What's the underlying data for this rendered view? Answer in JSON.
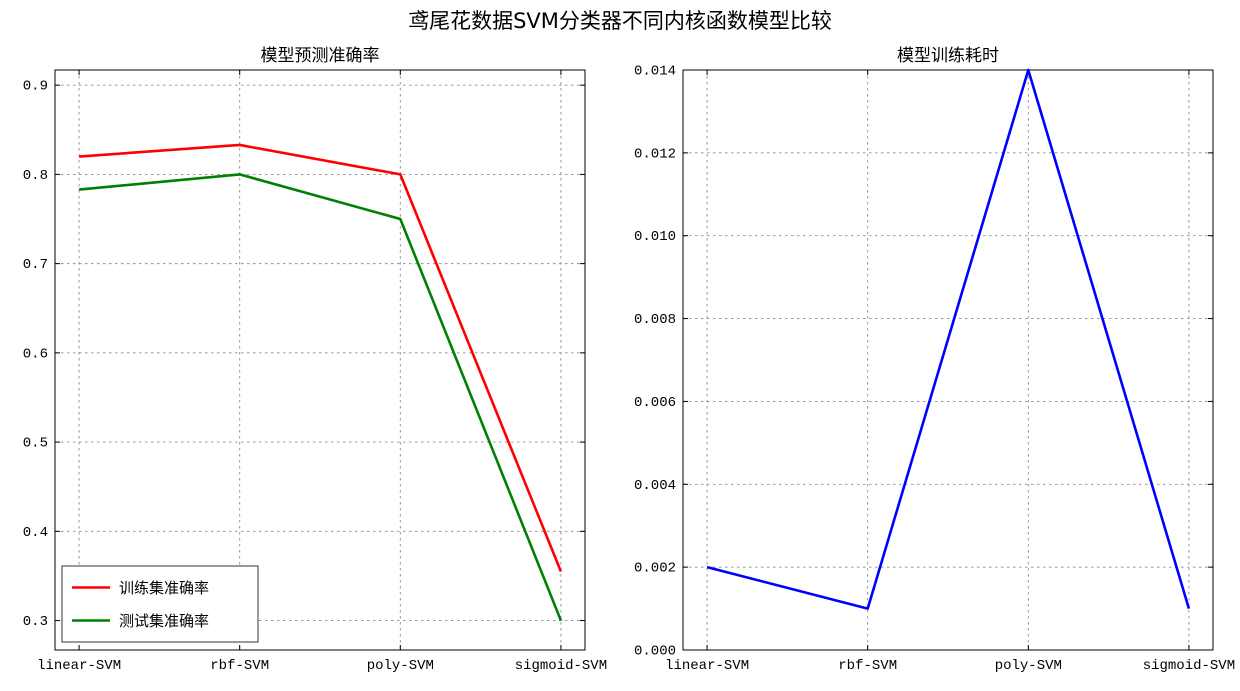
{
  "figure": {
    "title": "鸢尾花数据SVM分类器不同内核函数模型比较",
    "background": "#ffffff"
  },
  "chart_data": [
    {
      "type": "line",
      "title": "模型预测准确率",
      "categories": [
        "linear-SVM",
        "rbf-SVM",
        "poly-SVM",
        "sigmoid-SVM"
      ],
      "series": [
        {
          "name": "训练集准确率",
          "color": "#ff0000",
          "values": [
            0.82,
            0.833,
            0.8,
            0.355
          ]
        },
        {
          "name": "测试集准确率",
          "color": "#008000",
          "values": [
            0.783,
            0.8,
            0.75,
            0.3
          ]
        }
      ],
      "ylim": [
        0.267,
        0.917
      ],
      "yticks": [
        0.3,
        0.4,
        0.5,
        0.6,
        0.7,
        0.8,
        0.9
      ],
      "ytick_labels": [
        "0.3",
        "0.4",
        "0.5",
        "0.6",
        "0.7",
        "0.8",
        "0.9"
      ],
      "grid": true,
      "legend": {
        "position": "lower-left",
        "entries": [
          "训练集准确率",
          "测试集准确率"
        ]
      }
    },
    {
      "type": "line",
      "title": "模型训练耗时",
      "categories": [
        "linear-SVM",
        "rbf-SVM",
        "poly-SVM",
        "sigmoid-SVM"
      ],
      "series": [
        {
          "name": "",
          "color": "#0000ff",
          "values": [
            0.002,
            0.001,
            0.014,
            0.001
          ]
        }
      ],
      "ylim": [
        0,
        0.014
      ],
      "yticks": [
        0,
        0.002,
        0.004,
        0.006,
        0.008,
        0.01,
        0.012,
        0.014
      ],
      "ytick_labels": [
        "0.000",
        "0.002",
        "0.004",
        "0.006",
        "0.008",
        "0.010",
        "0.012",
        "0.014"
      ],
      "grid": true,
      "legend": null
    }
  ],
  "style": {
    "grid_color": "#8c8c8c",
    "spine_color": "#000000",
    "tick_label_color": "#000000",
    "legend_border_color": "#333333"
  }
}
